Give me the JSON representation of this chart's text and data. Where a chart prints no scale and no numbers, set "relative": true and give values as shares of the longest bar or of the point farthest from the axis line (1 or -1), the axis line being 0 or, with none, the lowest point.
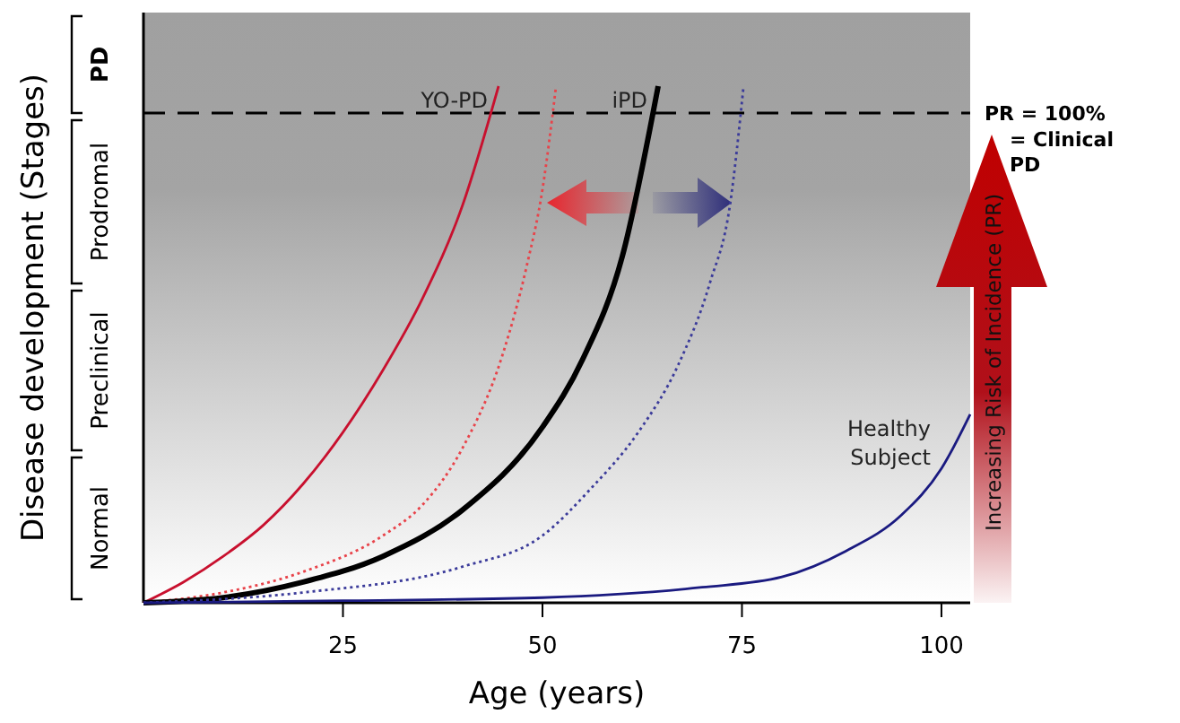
{
  "chart_data": {
    "type": "line",
    "relative": true,
    "xlabel": "Age (years)",
    "ylabel": "Disease development (Stages)",
    "xlim": [
      0,
      103.6
    ],
    "xticks": [
      25,
      50,
      75,
      100
    ],
    "series": [
      {
        "name": "YO-PD",
        "color": "#c8102e",
        "line_style": "solid",
        "x": [
          0,
          5,
          10,
          15,
          20,
          25,
          30,
          35,
          40,
          44.5
        ],
        "values": [
          0,
          0.04,
          0.09,
          0.15,
          0.23,
          0.33,
          0.45,
          0.59,
          0.77,
          1.0
        ]
      },
      {
        "color": "#e8434a",
        "line_style": "dotted",
        "x": [
          0,
          10,
          20,
          30,
          35,
          40,
          45,
          48,
          50,
          51.7
        ],
        "values": [
          0,
          0.02,
          0.06,
          0.13,
          0.19,
          0.3,
          0.48,
          0.65,
          0.8,
          1.0
        ]
      },
      {
        "name": "iPD",
        "color": "#000000",
        "line_style": "solid",
        "x": [
          0,
          10,
          20,
          30,
          40,
          50,
          55,
          60,
          64.5
        ],
        "values": [
          0,
          0.01,
          0.04,
          0.09,
          0.18,
          0.34,
          0.47,
          0.67,
          1.0
        ]
      },
      {
        "color": "#3b3b9a",
        "line_style": "dotted",
        "x": [
          0,
          20,
          40,
          50,
          56,
          62,
          67,
          71,
          73.5,
          75.2
        ],
        "values": [
          0,
          0.02,
          0.07,
          0.13,
          0.22,
          0.33,
          0.46,
          0.62,
          0.77,
          1.0
        ]
      },
      {
        "name": "Healthy Subject",
        "color": "#1a1a80",
        "line_style": "solid",
        "x": [
          0,
          25,
          50,
          70,
          80,
          88,
          95,
          100,
          103.6
        ],
        "values": [
          0,
          0.004,
          0.01,
          0.03,
          0.05,
          0.1,
          0.17,
          0.26,
          0.365
        ]
      }
    ],
    "ref_lines": [
      {
        "axis": "y",
        "value": 0.948,
        "color": "#000000",
        "line_style": "dashed"
      }
    ],
    "annotations": [
      "PD",
      "Prodromal",
      "Preclinical",
      "Normal",
      "Increasing Risk of Incidence (PR)",
      "PR = 100% = Clinical PD"
    ]
  }
}
